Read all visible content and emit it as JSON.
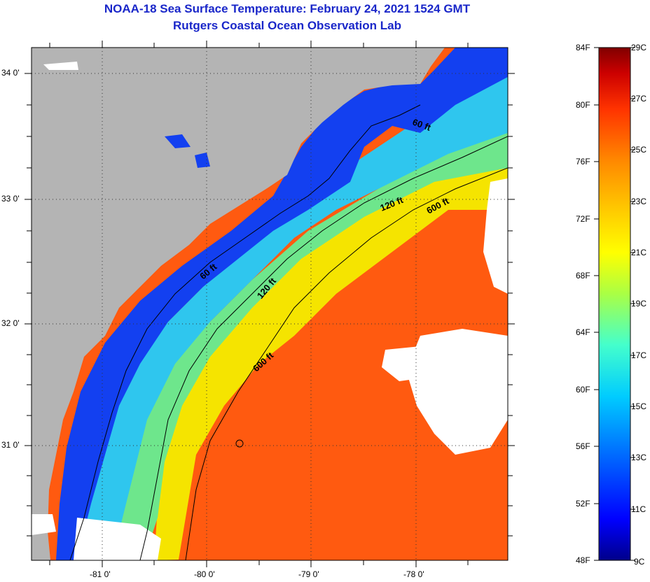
{
  "title": {
    "line1": "NOAA-18 Sea Surface Temperature:  February 24, 2021 1524 GMT",
    "line2": "Rutgers Coastal Ocean Observation Lab"
  },
  "map": {
    "lon_ticks": [
      "-81 0'",
      "-80 0'",
      "-79 0'",
      "-78 0'"
    ],
    "lat_ticks": [
      "34 0'",
      "33 0'",
      "32 0'",
      "31 0'"
    ],
    "colors": {
      "land": "#b4b4b4",
      "cloud": "#ffffff"
    },
    "contours": [
      {
        "label": "60 ft"
      },
      {
        "label": "60 ft"
      },
      {
        "label": "120 ft"
      },
      {
        "label": "120 ft"
      },
      {
        "label": "600 ft"
      },
      {
        "label": "600 ft"
      }
    ]
  },
  "colorbar": {
    "f_labels": [
      "84F",
      "80F",
      "76F",
      "72F",
      "68F",
      "64F",
      "60F",
      "56F",
      "52F",
      "48F"
    ],
    "c_labels": [
      "29C",
      "27C",
      "25C",
      "23C",
      "21C",
      "19C",
      "17C",
      "15C",
      "13C",
      "11C",
      "9C"
    ],
    "stops": [
      "#00008a",
      "#0000ff",
      "#0066ff",
      "#00ccff",
      "#44ffcc",
      "#aaff44",
      "#ffff00",
      "#ffcc00",
      "#ff8800",
      "#ff3300",
      "#cc0000",
      "#800000"
    ]
  }
}
